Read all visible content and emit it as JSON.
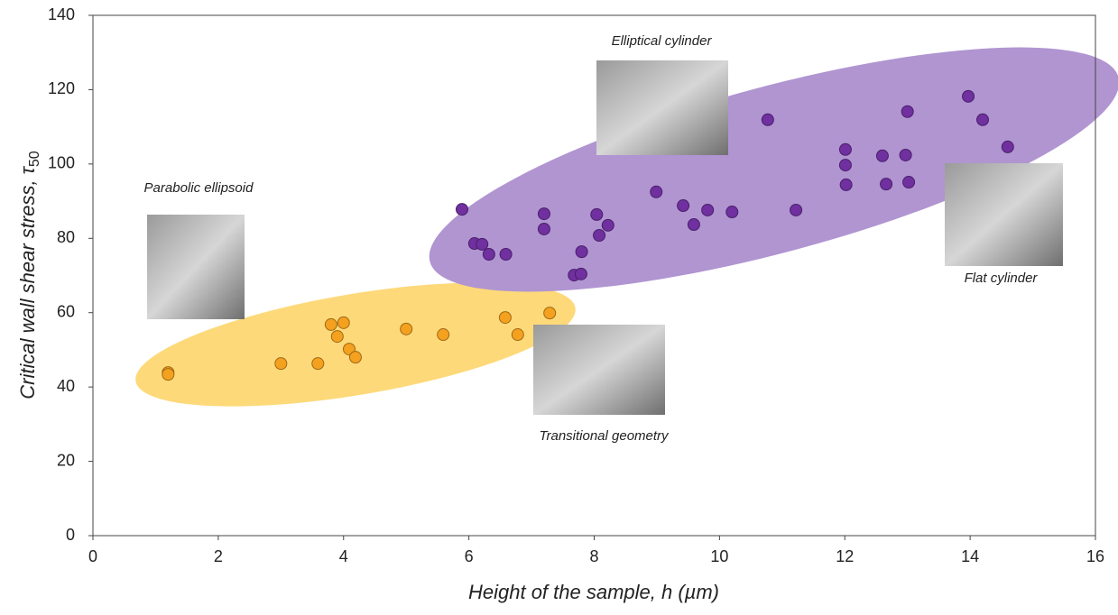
{
  "chart_data": {
    "type": "scatter",
    "xlabel": "Height of the sample, h (µm)",
    "ylabel": {
      "text": "Critical wall shear stress, τ",
      "subscript": "50"
    },
    "xlim": [
      0,
      16
    ],
    "xticks": [
      0,
      2,
      4,
      6,
      8,
      10,
      12,
      14,
      16
    ],
    "ylim": [
      0,
      140
    ],
    "yticks": [
      0,
      20,
      40,
      60,
      80,
      100,
      120,
      140
    ],
    "grid": false,
    "annotations": [
      "Elliptical cylinder",
      "Parabolic ellipsoid",
      "Flat cylinder",
      "Transitional geometry"
    ],
    "series": [
      {
        "color": "#f4a11f",
        "x": [
          1.2,
          1.2,
          3.0,
          3.59,
          3.8,
          4.0,
          3.9,
          4.09,
          4.19,
          5.0,
          5.59,
          6.58,
          6.78,
          7.29
        ],
        "values": [
          43.9,
          43.4,
          46.3,
          46.3,
          56.8,
          57.3,
          53.6,
          50.2,
          48.0,
          55.6,
          54.1,
          58.7,
          54.1,
          59.9
        ]
      },
      {
        "color": "#7030a0",
        "x": [
          5.89,
          6.09,
          6.21,
          6.32,
          6.59,
          7.2,
          7.2,
          7.68,
          7.79,
          7.8,
          8.04,
          8.08,
          8.22,
          8.99,
          9.42,
          9.59,
          9.81,
          10.2,
          10.77,
          11.22,
          12.01,
          12.01,
          12.02,
          12.6,
          12.66,
          12.97,
          13.0,
          13.02,
          13.97,
          14.2,
          14.6
        ],
        "values": [
          87.8,
          78.6,
          78.4,
          75.7,
          75.7,
          86.6,
          82.5,
          70.1,
          70.4,
          76.4,
          86.4,
          80.8,
          83.5,
          92.5,
          88.8,
          83.7,
          87.6,
          87.1,
          111.9,
          87.6,
          103.9,
          99.7,
          94.4,
          102.2,
          94.6,
          102.4,
          114.1,
          95.1,
          118.2,
          111.9,
          104.6
        ]
      }
    ]
  }
}
